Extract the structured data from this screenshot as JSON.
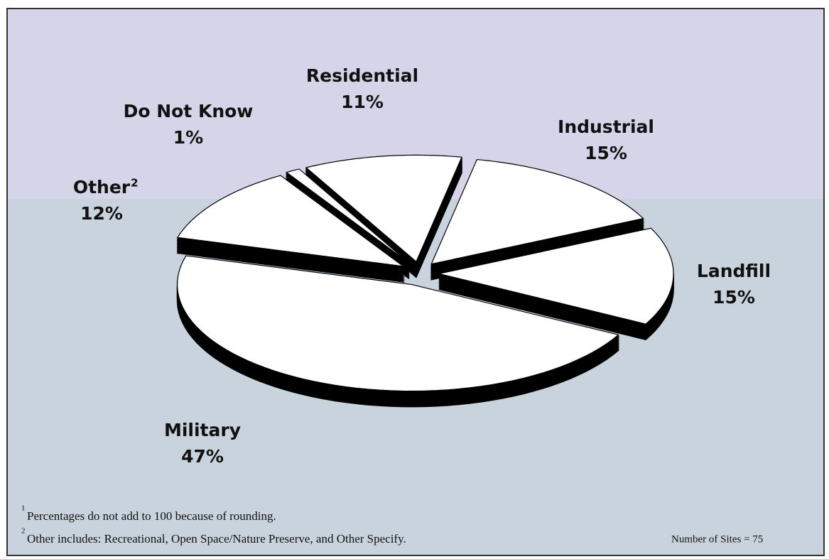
{
  "chart_data": {
    "type": "pie",
    "categories": [
      "Residential",
      "Industrial",
      "Landfill",
      "Military",
      "Other",
      "Do Not Know"
    ],
    "values": [
      11,
      15,
      15,
      47,
      12,
      1
    ],
    "value_labels": [
      "11%",
      "15%",
      "15%",
      "47%",
      "12%",
      "1%"
    ],
    "color": "#ffffff",
    "footnotes": [
      {
        "marker": "1",
        "text": "Percentages do not add to 100 because of rounding."
      },
      {
        "marker": "2",
        "text": "Other includes: Recreational, Open Space/Nature Preserve, and Other Specify."
      }
    ],
    "note": "Number of Sites = 75"
  }
}
